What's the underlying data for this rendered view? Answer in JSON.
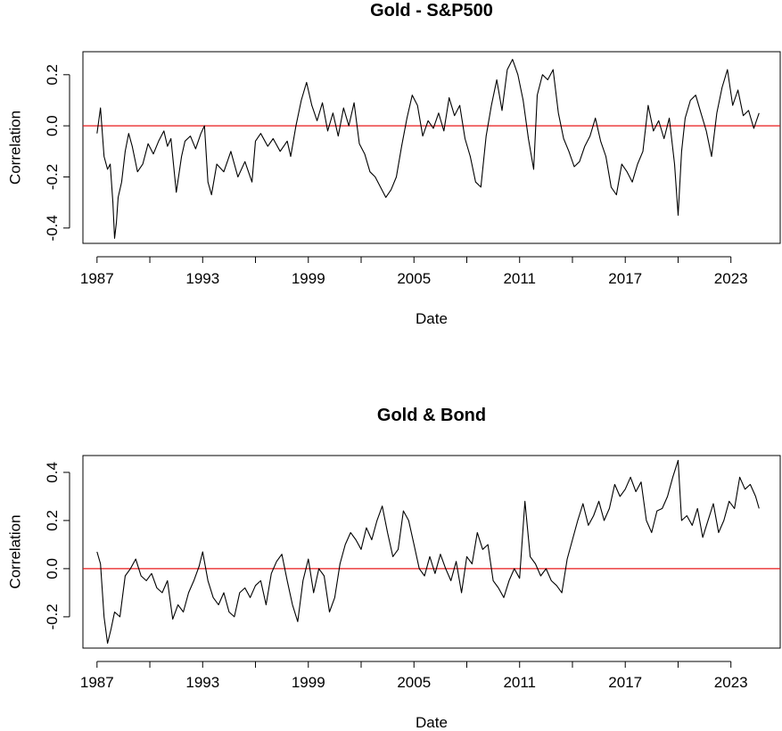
{
  "chart_data": [
    {
      "type": "line",
      "title": "Gold - S&P500",
      "xlabel": "Date",
      "ylabel": "Correlation",
      "xlim": [
        1986.2,
        2025.8
      ],
      "ylim": [
        -0.46,
        0.29
      ],
      "x_ticks": [
        1987,
        1993,
        1999,
        2005,
        2011,
        2017,
        2023
      ],
      "x_tick_labels": [
        "1987",
        "1993",
        "1999",
        "2005",
        "2011",
        "2017",
        "2023"
      ],
      "minor_x_ticks": [
        1987,
        1990,
        1993,
        1996,
        1999,
        2002,
        2005,
        2008,
        2011,
        2014,
        2017,
        2020,
        2023
      ],
      "y_ticks": [
        -0.4,
        -0.2,
        0.0,
        0.2
      ],
      "y_tick_labels": [
        "-0.4",
        "-0.2",
        "0.0",
        "0.2"
      ],
      "grid": false,
      "reference_line": {
        "y": 0.0,
        "color": "#e8191a"
      },
      "line_color": "#000000",
      "series": [
        {
          "x": [
            1987.0,
            1987.2,
            1987.4,
            1987.6,
            1987.75,
            1987.9,
            1988.0,
            1988.1,
            1988.2,
            1988.4,
            1988.6,
            1988.8,
            1989.0,
            1989.3,
            1989.6,
            1989.9,
            1990.2,
            1990.5,
            1990.8,
            1991.0,
            1991.2,
            1991.5,
            1991.8,
            1992.0,
            1992.3,
            1992.6,
            1992.9,
            1993.1,
            1993.3,
            1993.5,
            1993.8,
            1994.2,
            1994.6,
            1995.0,
            1995.4,
            1995.8,
            1996.0,
            1996.3,
            1996.7,
            1997.0,
            1997.4,
            1997.8,
            1998.0,
            1998.3,
            1998.6,
            1998.9,
            1999.2,
            1999.5,
            1999.8,
            2000.1,
            2000.4,
            2000.7,
            2001.0,
            2001.3,
            2001.6,
            2001.9,
            2002.2,
            2002.5,
            2002.8,
            2003.1,
            2003.4,
            2003.7,
            2004.0,
            2004.3,
            2004.6,
            2004.9,
            2005.2,
            2005.5,
            2005.8,
            2006.1,
            2006.4,
            2006.7,
            2007.0,
            2007.3,
            2007.6,
            2007.9,
            2008.2,
            2008.5,
            2008.8,
            2009.1,
            2009.4,
            2009.7,
            2010.0,
            2010.3,
            2010.6,
            2010.9,
            2011.2,
            2011.5,
            2011.8,
            2012.0,
            2012.3,
            2012.6,
            2012.9,
            2013.2,
            2013.5,
            2013.8,
            2014.1,
            2014.4,
            2014.7,
            2015.0,
            2015.3,
            2015.6,
            2015.9,
            2016.2,
            2016.5,
            2016.8,
            2017.1,
            2017.4,
            2017.7,
            2018.0,
            2018.3,
            2018.6,
            2018.9,
            2019.2,
            2019.5,
            2019.8,
            2020.0,
            2020.2,
            2020.4,
            2020.7,
            2021.0,
            2021.3,
            2021.6,
            2021.9,
            2022.2,
            2022.5,
            2022.8,
            2023.1,
            2023.4,
            2023.7,
            2024.0,
            2024.3,
            2024.6
          ],
          "y": [
            -0.03,
            0.07,
            -0.12,
            -0.17,
            -0.15,
            -0.3,
            -0.44,
            -0.38,
            -0.28,
            -0.22,
            -0.1,
            -0.03,
            -0.08,
            -0.18,
            -0.15,
            -0.07,
            -0.11,
            -0.06,
            -0.02,
            -0.08,
            -0.05,
            -0.26,
            -0.12,
            -0.06,
            -0.04,
            -0.09,
            -0.03,
            0.0,
            -0.22,
            -0.27,
            -0.15,
            -0.18,
            -0.1,
            -0.2,
            -0.14,
            -0.22,
            -0.06,
            -0.03,
            -0.08,
            -0.05,
            -0.1,
            -0.06,
            -0.12,
            0.0,
            0.1,
            0.17,
            0.08,
            0.02,
            0.09,
            -0.02,
            0.05,
            -0.04,
            0.07,
            0.0,
            0.09,
            -0.07,
            -0.11,
            -0.18,
            -0.2,
            -0.24,
            -0.28,
            -0.25,
            -0.2,
            -0.08,
            0.03,
            0.12,
            0.08,
            -0.04,
            0.02,
            -0.01,
            0.05,
            -0.02,
            0.11,
            0.04,
            0.08,
            -0.05,
            -0.12,
            -0.22,
            -0.24,
            -0.04,
            0.08,
            0.18,
            0.06,
            0.22,
            0.26,
            0.2,
            0.1,
            -0.05,
            -0.17,
            0.12,
            0.2,
            0.18,
            0.22,
            0.05,
            -0.05,
            -0.1,
            -0.16,
            -0.14,
            -0.08,
            -0.04,
            0.03,
            -0.06,
            -0.12,
            -0.24,
            -0.27,
            -0.15,
            -0.18,
            -0.22,
            -0.15,
            -0.1,
            0.08,
            -0.02,
            0.02,
            -0.05,
            0.03,
            -0.15,
            -0.35,
            -0.1,
            0.03,
            0.1,
            0.12,
            0.05,
            -0.02,
            -0.12,
            0.05,
            0.15,
            0.22,
            0.08,
            0.14,
            0.04,
            0.06,
            -0.01,
            0.05
          ]
        }
      ]
    },
    {
      "type": "line",
      "title": "Gold & Bond",
      "xlabel": "Date",
      "ylabel": "Correlation",
      "xlim": [
        1986.2,
        2025.8
      ],
      "ylim": [
        -0.33,
        0.47
      ],
      "x_ticks": [
        1987,
        1993,
        1999,
        2005,
        2011,
        2017,
        2023
      ],
      "x_tick_labels": [
        "1987",
        "1993",
        "1999",
        "2005",
        "2011",
        "2017",
        "2023"
      ],
      "minor_x_ticks": [
        1987,
        1990,
        1993,
        1996,
        1999,
        2002,
        2005,
        2008,
        2011,
        2014,
        2017,
        2020,
        2023
      ],
      "y_ticks": [
        -0.2,
        0.0,
        0.2,
        0.4
      ],
      "y_tick_labels": [
        "-0.2",
        "0.0",
        "0.2",
        "0.4"
      ],
      "grid": false,
      "reference_line": {
        "y": 0.0,
        "color": "#e8191a"
      },
      "line_color": "#000000",
      "series": [
        {
          "x": [
            1987.0,
            1987.2,
            1987.4,
            1987.6,
            1987.8,
            1988.0,
            1988.3,
            1988.6,
            1988.9,
            1989.2,
            1989.5,
            1989.8,
            1990.1,
            1990.4,
            1990.7,
            1991.0,
            1991.3,
            1991.6,
            1991.9,
            1992.2,
            1992.5,
            1992.8,
            1993.0,
            1993.3,
            1993.6,
            1993.9,
            1994.2,
            1994.5,
            1994.8,
            1995.1,
            1995.4,
            1995.7,
            1996.0,
            1996.3,
            1996.6,
            1996.9,
            1997.2,
            1997.5,
            1997.8,
            1998.1,
            1998.4,
            1998.7,
            1999.0,
            1999.3,
            1999.6,
            1999.9,
            2000.2,
            2000.5,
            2000.8,
            2001.1,
            2001.4,
            2001.7,
            2002.0,
            2002.3,
            2002.6,
            2002.9,
            2003.2,
            2003.5,
            2003.8,
            2004.1,
            2004.4,
            2004.7,
            2005.0,
            2005.3,
            2005.6,
            2005.9,
            2006.2,
            2006.5,
            2006.8,
            2007.1,
            2007.4,
            2007.7,
            2008.0,
            2008.3,
            2008.6,
            2008.9,
            2009.2,
            2009.5,
            2009.8,
            2010.1,
            2010.4,
            2010.7,
            2011.0,
            2011.3,
            2011.6,
            2011.9,
            2012.2,
            2012.5,
            2012.8,
            2013.1,
            2013.4,
            2013.7,
            2014.0,
            2014.3,
            2014.6,
            2014.9,
            2015.2,
            2015.5,
            2015.8,
            2016.1,
            2016.4,
            2016.7,
            2017.0,
            2017.3,
            2017.6,
            2017.9,
            2018.2,
            2018.5,
            2018.8,
            2019.1,
            2019.4,
            2019.7,
            2020.0,
            2020.2,
            2020.5,
            2020.8,
            2021.1,
            2021.4,
            2021.7,
            2022.0,
            2022.3,
            2022.6,
            2022.9,
            2023.2,
            2023.5,
            2023.8,
            2024.1,
            2024.4,
            2024.6
          ],
          "y": [
            0.07,
            0.02,
            -0.2,
            -0.31,
            -0.25,
            -0.18,
            -0.2,
            -0.03,
            0.0,
            0.04,
            -0.03,
            -0.05,
            -0.02,
            -0.08,
            -0.1,
            -0.05,
            -0.21,
            -0.15,
            -0.18,
            -0.1,
            -0.05,
            0.01,
            0.07,
            -0.05,
            -0.12,
            -0.15,
            -0.1,
            -0.18,
            -0.2,
            -0.1,
            -0.08,
            -0.12,
            -0.07,
            -0.05,
            -0.15,
            -0.02,
            0.03,
            0.06,
            -0.05,
            -0.15,
            -0.22,
            -0.05,
            0.04,
            -0.1,
            0.0,
            -0.03,
            -0.18,
            -0.12,
            0.02,
            0.1,
            0.15,
            0.12,
            0.08,
            0.17,
            0.12,
            0.2,
            0.26,
            0.15,
            0.05,
            0.08,
            0.24,
            0.2,
            0.1,
            0.0,
            -0.03,
            0.05,
            -0.02,
            0.06,
            0.0,
            -0.05,
            0.03,
            -0.1,
            0.05,
            0.02,
            0.15,
            0.08,
            0.1,
            -0.05,
            -0.08,
            -0.12,
            -0.05,
            0.0,
            -0.04,
            0.28,
            0.05,
            0.02,
            -0.03,
            0.0,
            -0.05,
            -0.07,
            -0.1,
            0.04,
            0.12,
            0.2,
            0.27,
            0.18,
            0.22,
            0.28,
            0.2,
            0.25,
            0.35,
            0.3,
            0.33,
            0.38,
            0.32,
            0.36,
            0.2,
            0.15,
            0.24,
            0.25,
            0.3,
            0.38,
            0.45,
            0.2,
            0.22,
            0.18,
            0.25,
            0.13,
            0.2,
            0.27,
            0.15,
            0.2,
            0.28,
            0.25,
            0.38,
            0.33,
            0.35,
            0.3,
            0.25
          ]
        }
      ]
    }
  ]
}
